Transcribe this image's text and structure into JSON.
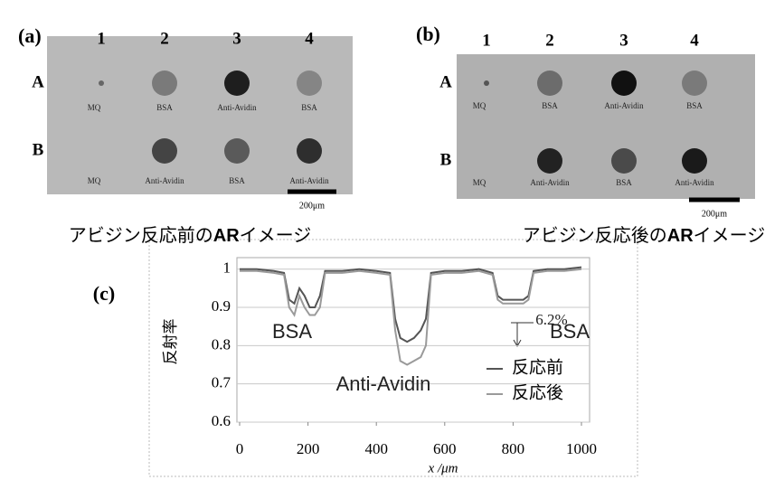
{
  "panels": [
    {
      "label": "(a)",
      "columns": [
        "1",
        "2",
        "3",
        "4"
      ],
      "rows": [
        {
          "label": "A",
          "spots": [
            "MQ",
            "BSA",
            "Anti-Avidin",
            "BSA"
          ]
        },
        {
          "label": "B",
          "spots": [
            "MQ",
            "Anti-Avidin",
            "BSA",
            "Anti-Avidin"
          ]
        }
      ],
      "scale_bar": "200μm",
      "caption": [
        "アビジン反応前の",
        "AR",
        "イメージ"
      ]
    },
    {
      "label": "(b)",
      "columns": [
        "1",
        "2",
        "3",
        "4"
      ],
      "rows": [
        {
          "label": "A",
          "spots": [
            "MQ",
            "BSA",
            "Anti-Avidin",
            "BSA"
          ]
        },
        {
          "label": "B",
          "spots": [
            "MQ",
            "Anti-Avidin",
            "BSA",
            "Anti-Avidin"
          ]
        }
      ],
      "scale_bar": "200μm",
      "caption": [
        "アビジン反応後の",
        "AR",
        "イメージ"
      ]
    }
  ],
  "chart_data": {
    "type": "line",
    "panel_label": "(c)",
    "x_label": "x /μm",
    "y_label": "反射率",
    "x": [
      0,
      50,
      100,
      130,
      145,
      160,
      175,
      190,
      205,
      220,
      235,
      250,
      300,
      350,
      400,
      440,
      455,
      470,
      490,
      510,
      530,
      545,
      560,
      600,
      650,
      700,
      740,
      755,
      770,
      800,
      830,
      845,
      860,
      900,
      950,
      1000
    ],
    "series": [
      {
        "name": "反応前",
        "color": "#555555",
        "values": [
          1.0,
          1.0,
          0.995,
          0.99,
          0.92,
          0.91,
          0.95,
          0.93,
          0.9,
          0.9,
          0.93,
          0.995,
          0.995,
          1.0,
          0.995,
          0.99,
          0.87,
          0.82,
          0.81,
          0.82,
          0.84,
          0.87,
          0.99,
          0.995,
          0.995,
          1.0,
          0.99,
          0.93,
          0.92,
          0.92,
          0.92,
          0.93,
          0.995,
          1.0,
          1.0,
          1.005
        ]
      },
      {
        "name": "反応後",
        "color": "#9a9a9a",
        "values": [
          0.995,
          0.995,
          0.99,
          0.985,
          0.9,
          0.88,
          0.93,
          0.9,
          0.88,
          0.88,
          0.9,
          0.99,
          0.99,
          0.995,
          0.99,
          0.985,
          0.84,
          0.76,
          0.75,
          0.76,
          0.77,
          0.8,
          0.985,
          0.99,
          0.99,
          0.995,
          0.985,
          0.92,
          0.91,
          0.91,
          0.91,
          0.92,
          0.99,
          0.995,
          0.995,
          1.0
        ]
      }
    ],
    "xlim": [
      0,
      1000
    ],
    "xticks": [
      0,
      200,
      400,
      600,
      800,
      1000
    ],
    "ylim": [
      0.6,
      1.03
    ],
    "yticks": [
      0.6,
      0.7,
      0.8,
      0.9,
      1
    ],
    "grid": true,
    "annotations": [
      "BSA",
      "BSA",
      "Anti-Avidin",
      "6.2%"
    ]
  }
}
